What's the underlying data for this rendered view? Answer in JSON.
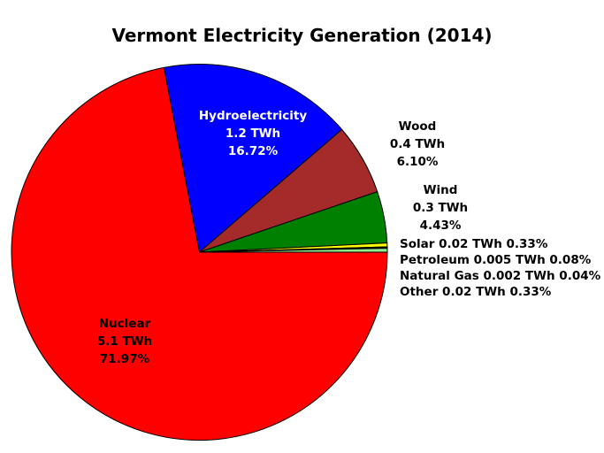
{
  "chart_data": {
    "type": "pie",
    "title": "Vermont Electricity Generation (2014)",
    "unit": "TWh",
    "direction": "clockwise",
    "start_angle_deg": 100.91,
    "legend": "none",
    "slices": [
      {
        "label": "Hydroelectricity",
        "value_twh": "1.2",
        "pct": "16.72",
        "color": "#0000ff",
        "label_position": "inside"
      },
      {
        "label": "Wood",
        "value_twh": "0.4",
        "pct": "6.10",
        "color": "#a52a2a",
        "label_position": "outside"
      },
      {
        "label": "Wind",
        "value_twh": "0.3",
        "pct": "4.43",
        "color": "#008000",
        "label_position": "outside"
      },
      {
        "label": "Solar",
        "value_twh": "0.02",
        "pct": "0.33",
        "color": "#ffff00",
        "label_position": "outside"
      },
      {
        "label": "Petroleum",
        "value_twh": "0.005",
        "pct": "0.08",
        "color": "#000000",
        "label_position": "outside"
      },
      {
        "label": "Natural Gas",
        "value_twh": "0.002",
        "pct": "0.04",
        "color": "#ff8c00",
        "label_position": "outside"
      },
      {
        "label": "Other",
        "value_twh": "0.02",
        "pct": "0.33",
        "color": "#90ee90",
        "label_position": "outside"
      },
      {
        "label": "Nuclear",
        "value_twh": "5.1",
        "pct": "71.97",
        "color": "#ff0000",
        "label_position": "inside"
      }
    ]
  },
  "labels": {
    "hydro": [
      "Hydroelectricity",
      "1.2 TWh",
      "16.72%"
    ],
    "nuclear": [
      "Nuclear",
      "5.1 TWh",
      "71.97%"
    ],
    "wood": [
      "Wood",
      "0.4 TWh",
      "6.10%"
    ],
    "wind": [
      "Wind",
      "0.3 TWh",
      "4.43%"
    ],
    "solar": "Solar 0.02 TWh 0.33%",
    "petroleum": "Petroleum 0.005 TWh 0.08%",
    "natural_gas": "Natural Gas 0.002 TWh 0.04%",
    "other": "Other 0.02 TWh 0.33%"
  },
  "colors": {
    "background": "#ffffff",
    "title_text": "#000000",
    "slice_outline": "#000000",
    "hydro_label_text": "#ffffff",
    "nuclear_label_text": "#000000"
  }
}
